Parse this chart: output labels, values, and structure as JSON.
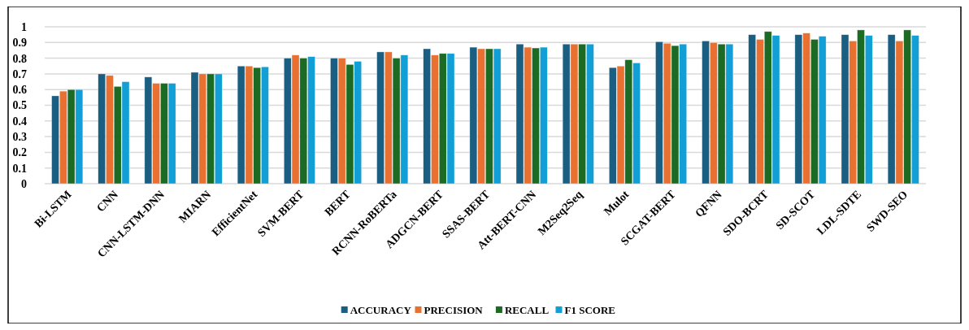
{
  "chart_data": {
    "type": "bar",
    "categories": [
      "Bi-LSTM",
      "CNN",
      "CNN-LSTM-DNN",
      "MIARN",
      "EfficientNet",
      "SVM-BERT",
      "BERT",
      "RCNN-RoBERTa",
      "ADGCN-BERT",
      "SSAS-BERT",
      "Att-BERT-CNN",
      "M2Seq2Seq",
      "Mulot",
      "SCGAT-BERT",
      "QFNN",
      "SDO-BCRT",
      "SD-SCOT",
      "LDL-SDTE",
      "SWD-SEO"
    ],
    "series": [
      {
        "name": "ACCURACY",
        "color": "#1a5e82",
        "values": [
          0.56,
          0.7,
          0.68,
          0.71,
          0.75,
          0.8,
          0.8,
          0.84,
          0.86,
          0.87,
          0.89,
          0.89,
          0.74,
          0.905,
          0.91,
          0.95,
          0.95,
          0.95,
          0.95
        ]
      },
      {
        "name": "PRECISION",
        "color": "#e87131",
        "values": [
          0.59,
          0.69,
          0.64,
          0.7,
          0.75,
          0.82,
          0.8,
          0.84,
          0.82,
          0.86,
          0.87,
          0.89,
          0.75,
          0.895,
          0.9,
          0.92,
          0.96,
          0.91,
          0.91
        ]
      },
      {
        "name": "RECALL",
        "color": "#1b6b25",
        "values": [
          0.6,
          0.62,
          0.64,
          0.7,
          0.74,
          0.8,
          0.76,
          0.8,
          0.83,
          0.86,
          0.865,
          0.89,
          0.79,
          0.88,
          0.89,
          0.97,
          0.92,
          0.98,
          0.98
        ]
      },
      {
        "name": "F1 SCORE",
        "color": "#129fd6",
        "values": [
          0.6,
          0.65,
          0.64,
          0.7,
          0.745,
          0.81,
          0.78,
          0.82,
          0.83,
          0.86,
          0.87,
          0.89,
          0.77,
          0.89,
          0.89,
          0.945,
          0.94,
          0.945,
          0.945
        ]
      }
    ],
    "ylim": [
      0,
      1
    ],
    "yticks": [
      0,
      0.1,
      0.2,
      0.3,
      0.4,
      0.5,
      0.6,
      0.7,
      0.8,
      0.9,
      1
    ],
    "grid": "y",
    "legend": "bottom"
  }
}
